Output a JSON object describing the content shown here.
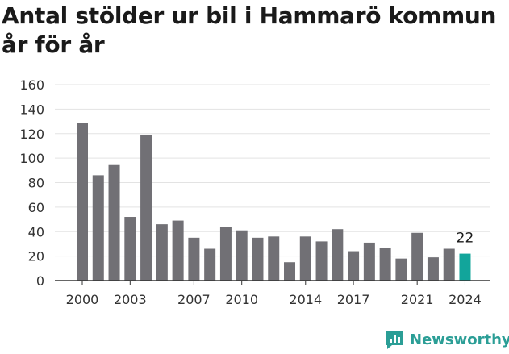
{
  "title_line1": "Antal stölder ur bil i Hammarö kommun",
  "title_line2": "år för år",
  "brand": "Newsworthy",
  "colors": {
    "bar": "#717075",
    "highlight": "#12a59b",
    "grid": "#e3e3e3",
    "axis": "#333333",
    "brand": "#2b9e96"
  },
  "chart_data": {
    "type": "bar",
    "title": "Antal stölder ur bil i Hammarö kommun år för år",
    "xlabel": "",
    "ylabel": "",
    "ylim": [
      0,
      160
    ],
    "yticks": [
      0,
      20,
      40,
      60,
      80,
      100,
      120,
      140,
      160
    ],
    "xtick_labels": [
      "2000",
      "2003",
      "2007",
      "2010",
      "2014",
      "2017",
      "2021",
      "2024"
    ],
    "grid": true,
    "legend": "none",
    "highlight_category": "2024",
    "data_labels": [
      {
        "category": "2024",
        "text": "22"
      }
    ],
    "categories": [
      "2000",
      "2001",
      "2002",
      "2003",
      "2004",
      "2005",
      "2006",
      "2007",
      "2008",
      "2009",
      "2010",
      "2011",
      "2012",
      "2013",
      "2014",
      "2015",
      "2016",
      "2017",
      "2018",
      "2019",
      "2020",
      "2021",
      "2022",
      "2023",
      "2024"
    ],
    "values": [
      129,
      86,
      95,
      52,
      119,
      46,
      49,
      35,
      26,
      44,
      41,
      35,
      36,
      15,
      36,
      32,
      42,
      24,
      31,
      27,
      18,
      39,
      19,
      26,
      22
    ]
  }
}
